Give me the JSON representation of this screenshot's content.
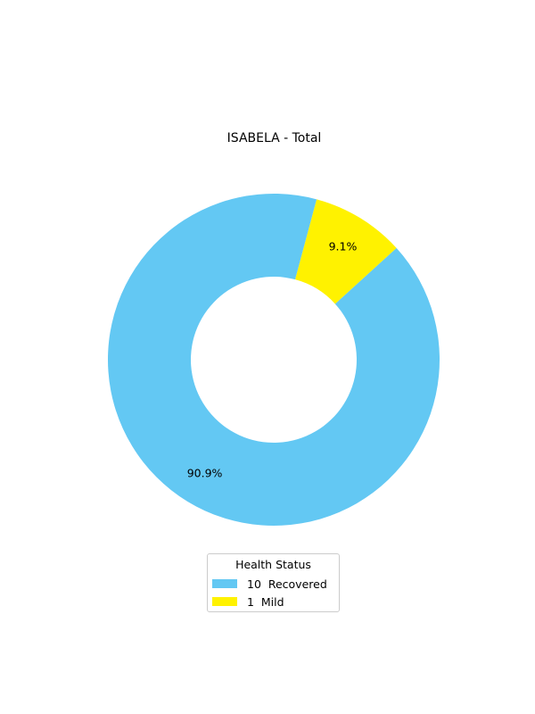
{
  "chart_data": {
    "type": "pie",
    "variant": "donut",
    "title": "ISABELA - Total",
    "legend_title": "Health Status",
    "legend_placement": "bottom-center",
    "slices": [
      {
        "name": "Recovered",
        "value": 10,
        "pct_label": "90.9%",
        "legend_label": "10  Recovered",
        "color": "#63c8f3"
      },
      {
        "name": "Mild",
        "value": 1,
        "pct_label": "9.1%",
        "legend_label": "1  Mild",
        "color": "#fff200"
      }
    ]
  }
}
